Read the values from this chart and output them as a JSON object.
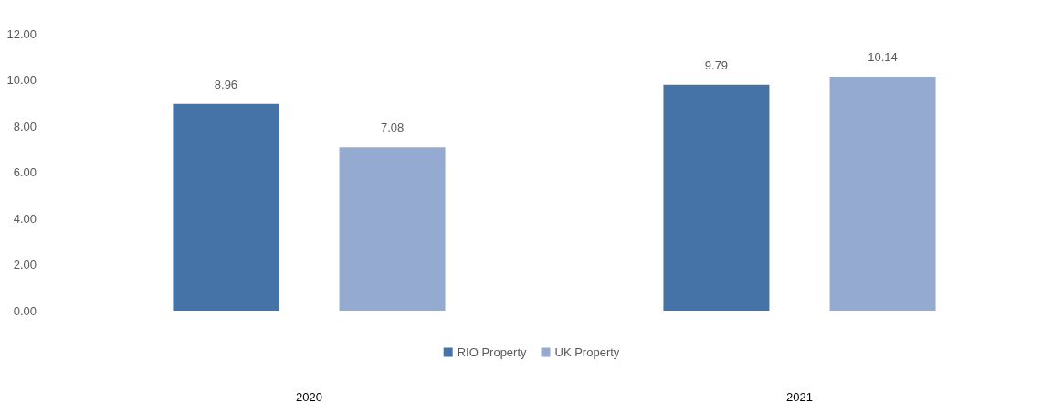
{
  "chart_data": {
    "type": "bar",
    "categories": [
      "2020",
      "2021"
    ],
    "series": [
      {
        "name": "RIO Property",
        "color": "#4673a7",
        "values": [
          8.96,
          9.79
        ]
      },
      {
        "name": "UK Property",
        "color": "#95aad0",
        "values": [
          7.08,
          10.14
        ]
      }
    ],
    "ylim": [
      0,
      12
    ],
    "yticks": [
      {
        "value": 0,
        "label": "0.00"
      },
      {
        "value": 2,
        "label": "2.00"
      },
      {
        "value": 4,
        "label": "4.00"
      },
      {
        "value": 6,
        "label": "6.00"
      },
      {
        "value": 8,
        "label": "8.00"
      },
      {
        "value": 10,
        "label": "10.00"
      },
      {
        "value": 12,
        "label": "12.00"
      }
    ],
    "data_labels": true,
    "grid": false,
    "legend": "bottom"
  }
}
